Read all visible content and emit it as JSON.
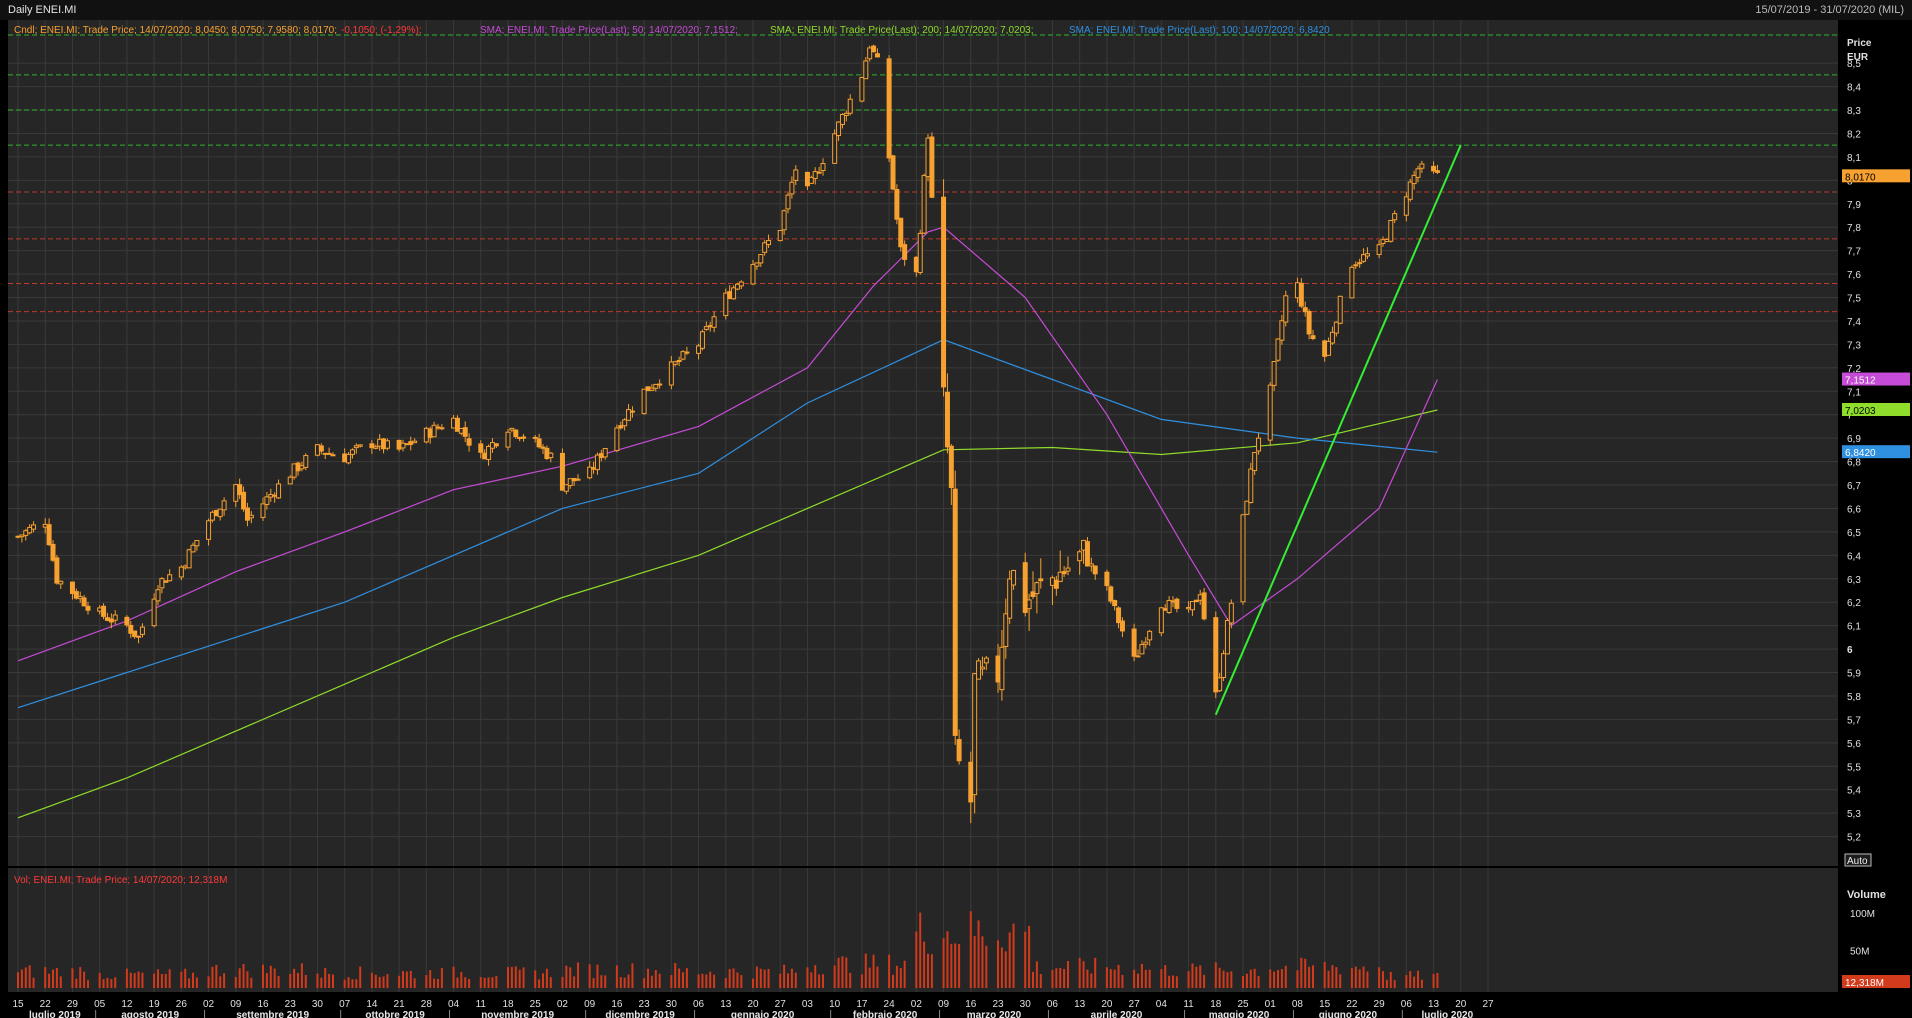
{
  "window": {
    "title": "Daily ENEI.MI",
    "date_range": "15/07/2019 - 31/07/2020 (MIL)"
  },
  "legend": {
    "price": {
      "ohlc": "Cndl; ENEI.MI; Trade Price; 14/07/2020; 8,0450; 8,0750; 7,9580; 8,0170;",
      "change": "-0,1050; (-1,29%);"
    },
    "sma50": "SMA; ENEI.MI; Trade Price(Last); 50; 14/07/2020; 7,1512;",
    "sma200": "SMA; ENEI.MI; Trade Price(Last); 200; 14/07/2020; 7,0203;",
    "sma100": "SMA; ENEI.MI; Trade Price(Last); 100; 14/07/2020; 6,8420",
    "volume": "Vol; ENEI.MI; Trade Price; 14/07/2020; 12,318M"
  },
  "colors": {
    "background": "#000000",
    "plot_background": "#262626",
    "grid": "#3a3a3a",
    "candle": "#f7a130",
    "sma50": "#c64bd6",
    "sma100": "#2f8fe0",
    "sma200": "#8fdc2a",
    "trendline": "#33ee33",
    "support": "#c0392b",
    "resistance": "#2fb52f",
    "volume": "#d23a1c",
    "text": "#d0d0d0"
  },
  "price_axis": {
    "title": "Price",
    "unit": "EUR",
    "ticks": [
      "5,2",
      "5,3",
      "5,4",
      "5,5",
      "5,6",
      "5,7",
      "5,8",
      "5,9",
      "6",
      "6,1",
      "6,2",
      "6,3",
      "6,4",
      "6,5",
      "6,6",
      "6,7",
      "6,8",
      "6,9",
      "7",
      "7,1",
      "7,2",
      "7,3",
      "7,4",
      "7,5",
      "7,6",
      "7,7",
      "7,8",
      "7,9",
      "8",
      "8,1",
      "8,2",
      "8,3",
      "8,4",
      "8,5"
    ],
    "labels": {
      "last_price": "8,0170",
      "sma50": "7,1512",
      "sma200": "7,0203",
      "sma100": "6,8420"
    },
    "auto_button": "Auto"
  },
  "volume_axis": {
    "title": "Volume",
    "ticks": [
      "100M",
      "50M"
    ],
    "last_label": "12,318M"
  },
  "time_axis": {
    "days": [
      "15",
      "22",
      "29",
      "05",
      "12",
      "19",
      "26",
      "02",
      "09",
      "16",
      "23",
      "30",
      "07",
      "14",
      "21",
      "28",
      "04",
      "11",
      "18",
      "25",
      "02",
      "09",
      "16",
      "23",
      "30",
      "06",
      "13",
      "20",
      "27",
      "03",
      "10",
      "17",
      "24",
      "02",
      "09",
      "16",
      "23",
      "30",
      "06",
      "13",
      "20",
      "27",
      "04",
      "11",
      "18",
      "25",
      "01",
      "08",
      "15",
      "22",
      "29",
      "06",
      "13",
      "20",
      "27"
    ],
    "months": [
      "luglio 2019",
      "agosto 2019",
      "settembre 2019",
      "ottobre 2019",
      "novembre 2019",
      "dicembre 2019",
      "gennaio 2020",
      "febbraio 2020",
      "marzo 2020",
      "aprile 2020",
      "maggio 2020",
      "giugno 2020",
      "luglio 2020"
    ]
  },
  "chart_data": {
    "type": "candlestick",
    "title": "Daily ENEI.MI",
    "ylabel": "Price EUR",
    "ylim": [
      5.1,
      8.62
    ],
    "volume_ylim": [
      0,
      155
    ],
    "volume_unit": "M",
    "horizontal_levels": {
      "resistance": [
        8.62,
        8.45,
        8.3,
        8.15
      ],
      "support": [
        7.95,
        7.75,
        7.56,
        7.44
      ]
    },
    "trendline": {
      "from": [
        "18/05/2020",
        5.72
      ],
      "to": [
        "20/07/2020",
        8.15
      ]
    },
    "anchors": [
      [
        "15/07/2019",
        6.48
      ],
      [
        "22/07/2019",
        6.55
      ],
      [
        "25/07/2019",
        6.3
      ],
      [
        "05/08/2019",
        6.15
      ],
      [
        "12/08/2019",
        6.1
      ],
      [
        "15/08/2019",
        6.05
      ],
      [
        "20/08/2019",
        6.28
      ],
      [
        "26/08/2019",
        6.35
      ],
      [
        "02/09/2019",
        6.55
      ],
      [
        "09/09/2019",
        6.7
      ],
      [
        "12/09/2019",
        6.55
      ],
      [
        "23/09/2019",
        6.75
      ],
      [
        "30/09/2019",
        6.85
      ],
      [
        "07/10/2019",
        6.82
      ],
      [
        "14/10/2019",
        6.88
      ],
      [
        "21/10/2019",
        6.85
      ],
      [
        "28/10/2019",
        6.92
      ],
      [
        "04/11/2019",
        6.98
      ],
      [
        "11/11/2019",
        6.82
      ],
      [
        "18/11/2019",
        6.95
      ],
      [
        "25/11/2019",
        6.88
      ],
      [
        "29/11/2019",
        6.82
      ],
      [
        "02/12/2019",
        6.7
      ],
      [
        "09/12/2019",
        6.75
      ],
      [
        "16/12/2019",
        6.95
      ],
      [
        "23/12/2019",
        7.1
      ],
      [
        "30/12/2019",
        7.2
      ],
      [
        "06/01/2020",
        7.3
      ],
      [
        "13/01/2020",
        7.5
      ],
      [
        "20/01/2020",
        7.65
      ],
      [
        "27/01/2020",
        7.8
      ],
      [
        "31/01/2020",
        8.05
      ],
      [
        "03/02/2020",
        7.95
      ],
      [
        "10/02/2020",
        8.2
      ],
      [
        "17/02/2020",
        8.45
      ],
      [
        "19/02/2020",
        8.58
      ],
      [
        "21/02/2020",
        8.5
      ],
      [
        "24/02/2020",
        8.1
      ],
      [
        "27/02/2020",
        7.7
      ],
      [
        "02/03/2020",
        7.6
      ],
      [
        "05/03/2020",
        8.2
      ],
      [
        "09/03/2020",
        7.05
      ],
      [
        "11/03/2020",
        6.65
      ],
      [
        "12/03/2020",
        5.55
      ],
      [
        "16/03/2020",
        5.35
      ],
      [
        "17/03/2020",
        5.85
      ],
      [
        "23/03/2020",
        5.9
      ],
      [
        "26/03/2020",
        6.35
      ],
      [
        "30/03/2020",
        6.2
      ],
      [
        "06/04/2020",
        6.3
      ],
      [
        "14/04/2020",
        6.4
      ],
      [
        "20/04/2020",
        6.25
      ],
      [
        "27/04/2020",
        5.95
      ],
      [
        "04/05/2020",
        6.2
      ],
      [
        "11/05/2020",
        6.15
      ],
      [
        "14/05/2020",
        6.25
      ],
      [
        "18/05/2020",
        5.8
      ],
      [
        "22/05/2020",
        6.2
      ],
      [
        "25/05/2020",
        6.55
      ],
      [
        "28/05/2020",
        6.85
      ],
      [
        "01/06/2020",
        7.1
      ],
      [
        "05/06/2020",
        7.5
      ],
      [
        "08/06/2020",
        7.55
      ],
      [
        "11/06/2020",
        7.35
      ],
      [
        "15/06/2020",
        7.25
      ],
      [
        "22/06/2020",
        7.65
      ],
      [
        "29/06/2020",
        7.7
      ],
      [
        "06/07/2020",
        7.95
      ],
      [
        "09/07/2020",
        8.05
      ],
      [
        "14/07/2020",
        8.017
      ]
    ],
    "sma50": [
      [
        "15/07/2019",
        5.95
      ],
      [
        "12/08/2019",
        6.12
      ],
      [
        "09/09/2019",
        6.33
      ],
      [
        "07/10/2019",
        6.5
      ],
      [
        "04/11/2019",
        6.68
      ],
      [
        "02/12/2019",
        6.78
      ],
      [
        "06/01/2020",
        6.95
      ],
      [
        "03/02/2020",
        7.2
      ],
      [
        "20/02/2020",
        7.55
      ],
      [
        "05/03/2020",
        7.78
      ],
      [
        "09/03/2020",
        7.8
      ],
      [
        "30/03/2020",
        7.5
      ],
      [
        "20/04/2020",
        7.0
      ],
      [
        "11/05/2020",
        6.4
      ],
      [
        "22/05/2020",
        6.1
      ],
      [
        "08/06/2020",
        6.3
      ],
      [
        "29/06/2020",
        6.6
      ],
      [
        "14/07/2020",
        7.15
      ]
    ],
    "sma100": [
      [
        "15/07/2019",
        5.75
      ],
      [
        "12/08/2019",
        5.9
      ],
      [
        "09/09/2019",
        6.05
      ],
      [
        "07/10/2019",
        6.2
      ],
      [
        "04/11/2019",
        6.4
      ],
      [
        "02/12/2019",
        6.6
      ],
      [
        "06/01/2020",
        6.75
      ],
      [
        "03/02/2020",
        7.05
      ],
      [
        "09/03/2020",
        7.32
      ],
      [
        "06/04/2020",
        7.15
      ],
      [
        "04/05/2020",
        6.98
      ],
      [
        "08/06/2020",
        6.9
      ],
      [
        "14/07/2020",
        6.84
      ]
    ],
    "sma200": [
      [
        "15/07/2019",
        5.28
      ],
      [
        "12/08/2019",
        5.45
      ],
      [
        "09/09/2019",
        5.65
      ],
      [
        "07/10/2019",
        5.85
      ],
      [
        "04/11/2019",
        6.05
      ],
      [
        "02/12/2019",
        6.22
      ],
      [
        "06/01/2020",
        6.4
      ],
      [
        "03/02/2020",
        6.6
      ],
      [
        "09/03/2020",
        6.85
      ],
      [
        "06/04/2020",
        6.86
      ],
      [
        "04/05/2020",
        6.83
      ],
      [
        "08/06/2020",
        6.88
      ],
      [
        "14/07/2020",
        7.02
      ]
    ],
    "volume_by_month_m": [
      [
        "luglio 2019",
        22
      ],
      [
        "agosto 2019",
        18
      ],
      [
        "settembre 2019",
        24
      ],
      [
        "ottobre 2019",
        20
      ],
      [
        "novembre 2019",
        20
      ],
      [
        "dicembre 2019",
        24
      ],
      [
        "gennaio 2020",
        22
      ],
      [
        "febbraio 2020",
        32
      ],
      [
        "marzo 2020",
        75
      ],
      [
        "aprile 2020",
        28
      ],
      [
        "maggio 2020",
        24
      ],
      [
        "giugno 2020",
        28
      ],
      [
        "luglio 2020",
        16
      ]
    ]
  }
}
